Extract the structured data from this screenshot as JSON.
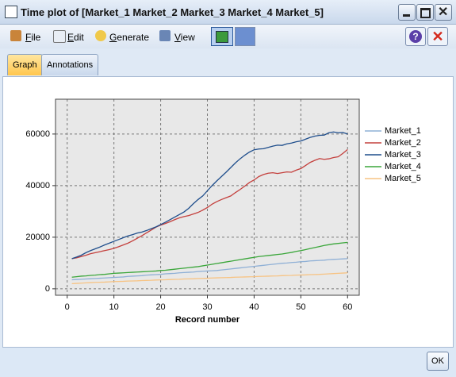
{
  "window": {
    "title": "Time plot of [Market_1 Market_2 Market_3 Market_4 Market_5]"
  },
  "menu": [
    "File",
    "Edit",
    "Generate",
    "View"
  ],
  "tabs": [
    "Graph",
    "Annotations"
  ],
  "buttons": {
    "ok": "OK"
  },
  "chart_data": {
    "type": "line",
    "xlabel": "Record number",
    "x": [
      1,
      2,
      3,
      4,
      5,
      6,
      7,
      8,
      9,
      10,
      11,
      12,
      13,
      14,
      15,
      16,
      17,
      18,
      19,
      20,
      21,
      22,
      23,
      24,
      25,
      26,
      27,
      28,
      29,
      30,
      31,
      32,
      33,
      34,
      35,
      36,
      37,
      38,
      39,
      40,
      41,
      42,
      43,
      44,
      45,
      46,
      47,
      48,
      49,
      50,
      51,
      52,
      53,
      54,
      55,
      56,
      57,
      58,
      59,
      60
    ],
    "xlim": [
      -2.5,
      62.5
    ],
    "xticks": [
      0,
      10,
      20,
      30,
      40,
      50,
      60
    ],
    "ylim": [
      -2500,
      73500
    ],
    "yticks": [
      0,
      20000,
      40000,
      60000
    ],
    "grid": true,
    "legend": "right",
    "series": [
      {
        "name": "Market_1",
        "color": "#8fb0d6",
        "values": [
          3500,
          3600,
          3700,
          3800,
          3900,
          4000,
          4100,
          4200,
          4300,
          4400,
          4500,
          4600,
          4800,
          4900,
          5000,
          5100,
          5300,
          5400,
          5500,
          5600,
          5800,
          5900,
          6000,
          6200,
          6300,
          6400,
          6500,
          6700,
          6800,
          6900,
          7000,
          7100,
          7300,
          7500,
          7700,
          7900,
          8100,
          8300,
          8500,
          8700,
          8900,
          9100,
          9300,
          9500,
          9700,
          9900,
          10000,
          10200,
          10300,
          10500,
          10600,
          10800,
          10900,
          11000,
          11100,
          11300,
          11400,
          11500,
          11600,
          11700
        ]
      },
      {
        "name": "Market_2",
        "color": "#c4403d",
        "values": [
          11700,
          12000,
          12500,
          13000,
          13600,
          14000,
          14400,
          14800,
          15200,
          15700,
          16300,
          17000,
          17700,
          18600,
          19600,
          20600,
          21700,
          22800,
          23900,
          24700,
          25300,
          26000,
          26800,
          27500,
          28000,
          28400,
          29000,
          29600,
          30500,
          31500,
          32800,
          33800,
          34600,
          35300,
          36000,
          37300,
          38500,
          39800,
          41200,
          42200,
          43500,
          44300,
          44800,
          45000,
          44700,
          45000,
          45300,
          45200,
          46000,
          46600,
          47800,
          49000,
          49800,
          50500,
          50200,
          50400,
          50900,
          51200,
          52500,
          54000
        ]
      },
      {
        "name": "Market_3",
        "color": "#1f4e8c",
        "values": [
          11700,
          12300,
          13000,
          14000,
          14800,
          15500,
          16200,
          17000,
          17700,
          18400,
          19100,
          19800,
          20500,
          21000,
          21600,
          22000,
          22600,
          23300,
          24000,
          24900,
          25800,
          26800,
          27800,
          28800,
          29800,
          31200,
          33000,
          34600,
          36000,
          38000,
          40000,
          41800,
          43500,
          45200,
          47000,
          48800,
          50400,
          51800,
          53000,
          53900,
          54200,
          54300,
          54800,
          55300,
          55700,
          55600,
          56200,
          56500,
          57000,
          57300,
          58000,
          58700,
          59200,
          59500,
          59600,
          60500,
          60800,
          60500,
          60600,
          60000
        ]
      },
      {
        "name": "Market_4",
        "color": "#3aa63a",
        "values": [
          4500,
          4700,
          4900,
          5000,
          5200,
          5300,
          5500,
          5600,
          5800,
          6000,
          6100,
          6200,
          6300,
          6400,
          6500,
          6600,
          6700,
          6800,
          6900,
          7100,
          7200,
          7400,
          7600,
          7800,
          8000,
          8200,
          8400,
          8600,
          8900,
          9200,
          9500,
          9800,
          10100,
          10400,
          10700,
          11000,
          11300,
          11600,
          11900,
          12200,
          12500,
          12700,
          12900,
          13100,
          13300,
          13500,
          13800,
          14100,
          14500,
          14800,
          15200,
          15600,
          16000,
          16400,
          16800,
          17100,
          17400,
          17600,
          17800,
          18000
        ]
      },
      {
        "name": "Market_5",
        "color": "#f7c383",
        "values": [
          2000,
          2100,
          2200,
          2300,
          2400,
          2500,
          2550,
          2600,
          2700,
          2800,
          2850,
          2900,
          3000,
          3050,
          3100,
          3200,
          3250,
          3300,
          3400,
          3450,
          3500,
          3600,
          3650,
          3700,
          3800,
          3850,
          3900,
          4000,
          4050,
          4100,
          4200,
          4250,
          4300,
          4350,
          4400,
          4500,
          4550,
          4600,
          4650,
          4700,
          4800,
          4850,
          4900,
          4950,
          5000,
          5100,
          5150,
          5200,
          5300,
          5350,
          5400,
          5500,
          5550,
          5600,
          5700,
          5800,
          5900,
          6000,
          6100,
          6200
        ]
      }
    ]
  }
}
